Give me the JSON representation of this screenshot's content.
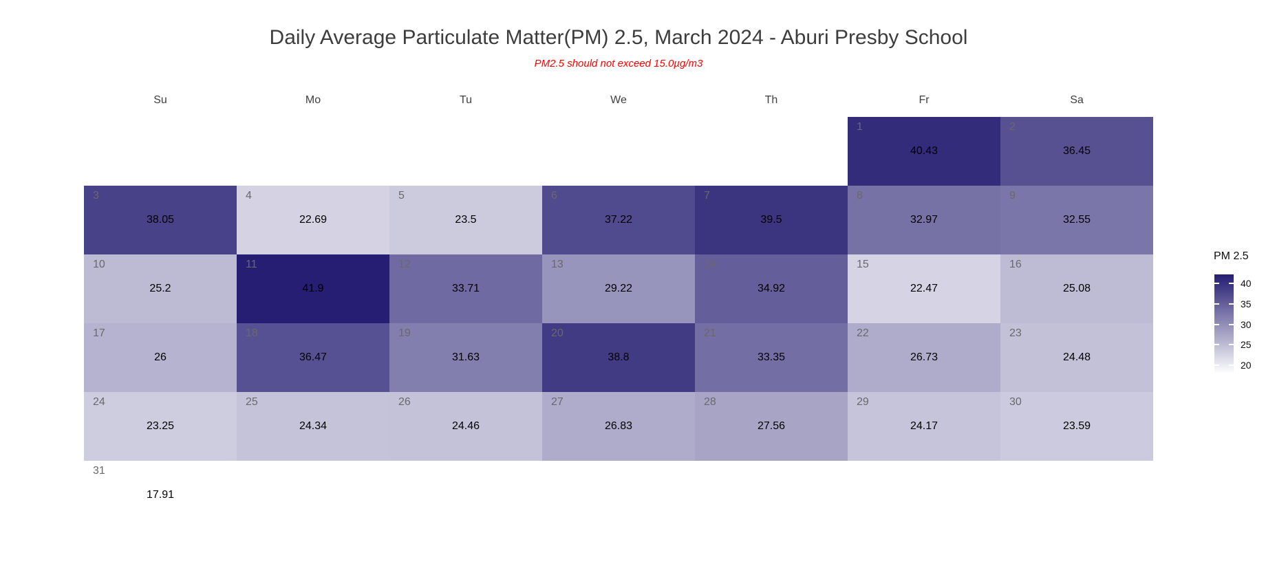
{
  "chart_data": {
    "type": "heatmap",
    "title": "Daily Average Particulate Matter(PM) 2.5, March 2024 - Aburi Presby School",
    "subtitle": "PM2.5 should not exceed 15.0µg/m3",
    "weekday_headers": [
      "Su",
      "Mo",
      "Tu",
      "We",
      "Th",
      "Fr",
      "Sa"
    ],
    "legend": {
      "title": "PM 2.5",
      "ticks": [
        40,
        35,
        30,
        25,
        20
      ]
    },
    "color_scale": {
      "low": "#FFFFFF",
      "high": "#251E72",
      "domain_min": 17.91,
      "domain_max": 41.9
    },
    "weeks": [
      [
        null,
        null,
        null,
        null,
        null,
        {
          "day": 1,
          "value": 40.43
        },
        {
          "day": 2,
          "value": 36.45
        }
      ],
      [
        {
          "day": 3,
          "value": 38.05
        },
        {
          "day": 4,
          "value": 22.69
        },
        {
          "day": 5,
          "value": 23.5
        },
        {
          "day": 6,
          "value": 37.22
        },
        {
          "day": 7,
          "value": 39.5
        },
        {
          "day": 8,
          "value": 32.97
        },
        {
          "day": 9,
          "value": 32.55
        }
      ],
      [
        {
          "day": 10,
          "value": 25.2
        },
        {
          "day": 11,
          "value": 41.9
        },
        {
          "day": 12,
          "value": 33.71
        },
        {
          "day": 13,
          "value": 29.22
        },
        {
          "day": 14,
          "value": 34.92
        },
        {
          "day": 15,
          "value": 22.47
        },
        {
          "day": 16,
          "value": 25.08
        }
      ],
      [
        {
          "day": 17,
          "value": 26
        },
        {
          "day": 18,
          "value": 36.47
        },
        {
          "day": 19,
          "value": 31.63
        },
        {
          "day": 20,
          "value": 38.8
        },
        {
          "day": 21,
          "value": 33.35
        },
        {
          "day": 22,
          "value": 26.73
        },
        {
          "day": 23,
          "value": 24.48
        }
      ],
      [
        {
          "day": 24,
          "value": 23.25
        },
        {
          "day": 25,
          "value": 24.34
        },
        {
          "day": 26,
          "value": 24.46
        },
        {
          "day": 27,
          "value": 26.83
        },
        {
          "day": 28,
          "value": 27.56
        },
        {
          "day": 29,
          "value": 24.17
        },
        {
          "day": 30,
          "value": 23.59
        }
      ],
      [
        {
          "day": 31,
          "value": 17.91
        },
        null,
        null,
        null,
        null,
        null,
        null
      ]
    ]
  },
  "text_colors": {
    "title": "#3d3d3d",
    "subtitle": "#ff0000",
    "weekday_header": "#3f3f3f",
    "day_number": "#69696b",
    "day_value": "#000000"
  }
}
